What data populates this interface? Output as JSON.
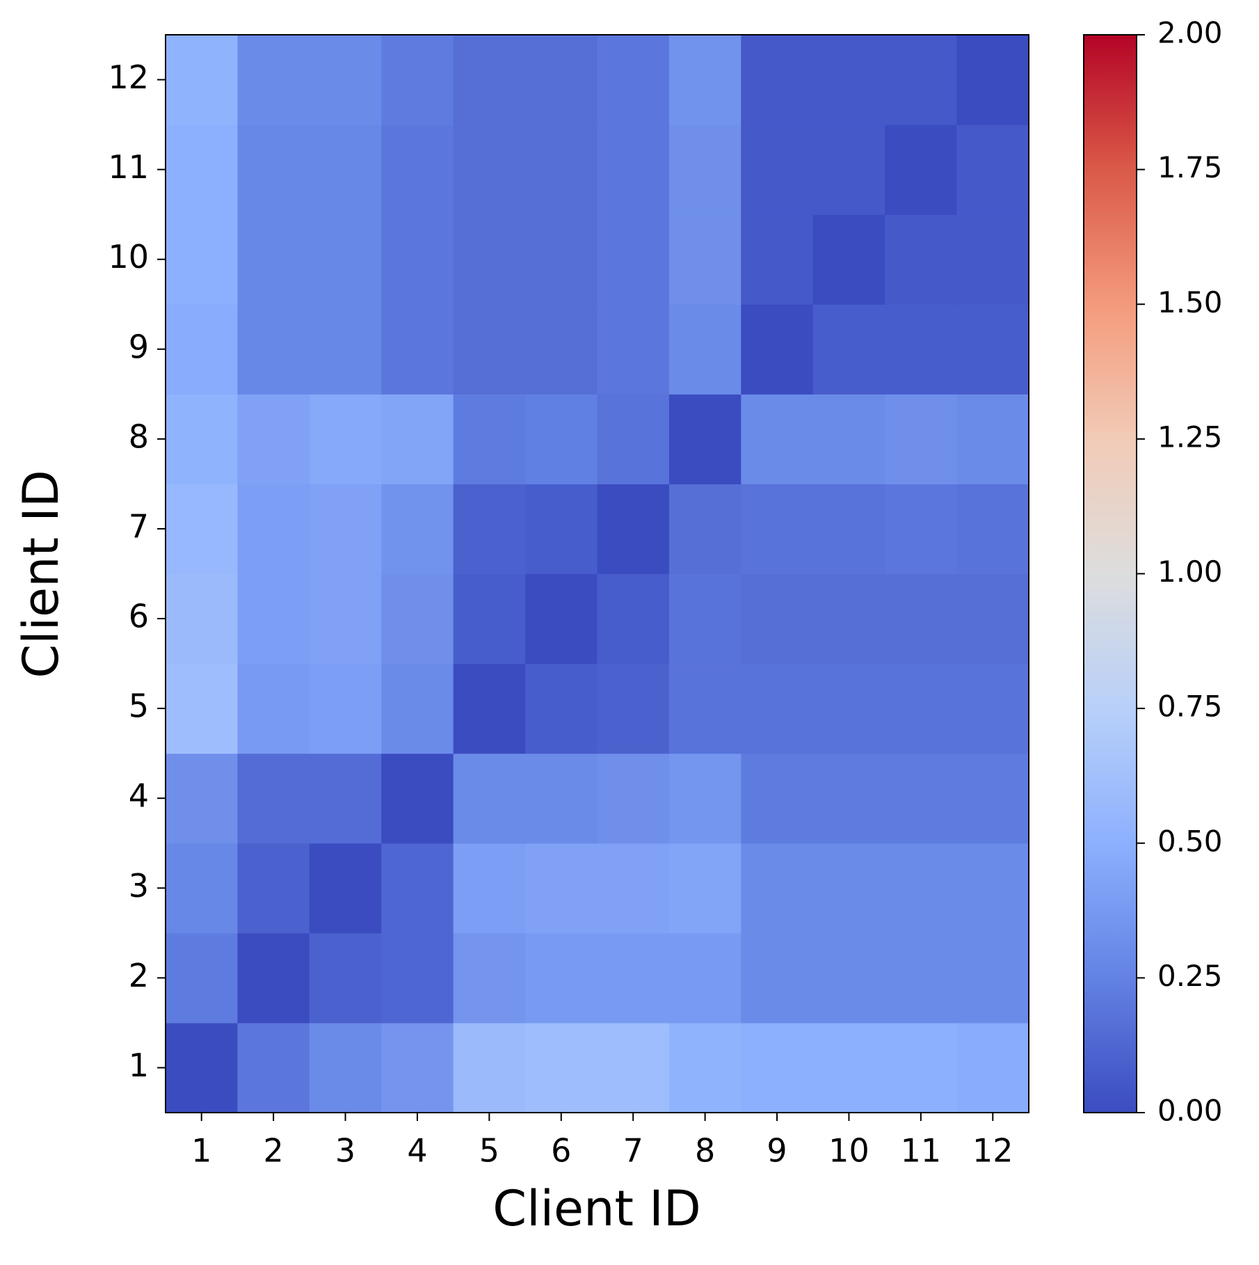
{
  "chart_data": {
    "type": "heatmap",
    "x_label": "Client ID",
    "y_label": "Client ID",
    "x_categories": [
      "1",
      "2",
      "3",
      "4",
      "5",
      "6",
      "7",
      "8",
      "9",
      "10",
      "11",
      "12"
    ],
    "y_categories": [
      "1",
      "2",
      "3",
      "4",
      "5",
      "6",
      "7",
      "8",
      "9",
      "10",
      "11",
      "12"
    ],
    "values": [
      [
        0.0,
        0.2,
        0.3,
        0.35,
        0.58,
        0.6,
        0.6,
        0.52,
        0.5,
        0.5,
        0.5,
        0.48
      ],
      [
        0.22,
        0.0,
        0.1,
        0.12,
        0.35,
        0.38,
        0.38,
        0.38,
        0.3,
        0.3,
        0.3,
        0.3
      ],
      [
        0.28,
        0.1,
        0.0,
        0.12,
        0.4,
        0.42,
        0.42,
        0.44,
        0.3,
        0.3,
        0.3,
        0.3
      ],
      [
        0.32,
        0.15,
        0.15,
        0.0,
        0.3,
        0.3,
        0.32,
        0.36,
        0.22,
        0.22,
        0.22,
        0.22
      ],
      [
        0.6,
        0.38,
        0.4,
        0.3,
        0.0,
        0.08,
        0.1,
        0.18,
        0.18,
        0.18,
        0.18,
        0.18
      ],
      [
        0.58,
        0.4,
        0.42,
        0.32,
        0.08,
        0.0,
        0.08,
        0.18,
        0.16,
        0.16,
        0.16,
        0.16
      ],
      [
        0.56,
        0.4,
        0.42,
        0.34,
        0.1,
        0.08,
        0.0,
        0.16,
        0.18,
        0.18,
        0.2,
        0.18
      ],
      [
        0.52,
        0.42,
        0.46,
        0.44,
        0.22,
        0.24,
        0.18,
        0.0,
        0.3,
        0.3,
        0.32,
        0.3
      ],
      [
        0.48,
        0.28,
        0.28,
        0.2,
        0.16,
        0.16,
        0.2,
        0.3,
        0.0,
        0.08,
        0.08,
        0.08
      ],
      [
        0.5,
        0.28,
        0.28,
        0.2,
        0.16,
        0.16,
        0.2,
        0.32,
        0.06,
        0.0,
        0.06,
        0.06
      ],
      [
        0.5,
        0.28,
        0.28,
        0.2,
        0.16,
        0.16,
        0.2,
        0.32,
        0.06,
        0.06,
        0.0,
        0.06
      ],
      [
        0.52,
        0.3,
        0.3,
        0.22,
        0.16,
        0.16,
        0.2,
        0.34,
        0.06,
        0.06,
        0.06,
        0.0
      ]
    ],
    "colormap": "coolwarm",
    "clim": [
      0,
      2
    ],
    "cticks": [
      {
        "value": 0,
        "label": "0.00"
      },
      {
        "value": 0.25,
        "label": "0.25"
      },
      {
        "value": 0.5,
        "label": "0.50"
      },
      {
        "value": 0.75,
        "label": "0.75"
      },
      {
        "value": 1,
        "label": "1.00"
      },
      {
        "value": 1.25,
        "label": "1.25"
      },
      {
        "value": 1.5,
        "label": "1.50"
      },
      {
        "value": 1.75,
        "label": "1.75"
      },
      {
        "value": 2,
        "label": "2.00"
      }
    ]
  }
}
